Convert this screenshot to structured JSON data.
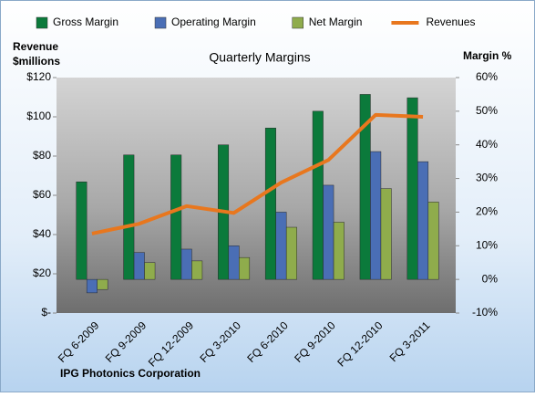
{
  "chart_data": {
    "type": "bar-line",
    "title": "Quarterly Margins",
    "ylabel": [
      "Revenue",
      "$millions"
    ],
    "y2label": "Margin %",
    "source": "IPG Photonics Corporation",
    "categories": [
      "FQ 6-2009",
      "FQ 9-2009",
      "FQ 12-2009",
      "FQ 3-2010",
      "FQ 6-2010",
      "FQ 9-2010",
      "FQ 12-2010",
      "FQ 3-2011"
    ],
    "series": [
      {
        "name": "Gross Margin",
        "color": "#0b7a3b",
        "type": "bar",
        "axis": "y2",
        "values": [
          29,
          37,
          37,
          40,
          45,
          50,
          55,
          54
        ]
      },
      {
        "name": "Operating Margin",
        "color": "#4a6eb5",
        "type": "bar",
        "axis": "y2",
        "values": [
          -4,
          8,
          9,
          10,
          20,
          28,
          38,
          35
        ]
      },
      {
        "name": "Net Margin",
        "color": "#8fac4c",
        "type": "bar",
        "axis": "y2",
        "values": [
          -3,
          5,
          5.5,
          6.5,
          15.5,
          17,
          27,
          23
        ]
      },
      {
        "name": "Revenues",
        "color": "#e8771e",
        "type": "line",
        "axis": "y",
        "values": [
          40.5,
          45.5,
          54.5,
          51,
          66.5,
          78,
          101,
          100
        ]
      }
    ],
    "ylim": [
      0,
      120
    ],
    "yticks": [
      {
        "value": 0,
        "label": "$-"
      },
      {
        "value": 20,
        "label": "$20"
      },
      {
        "value": 40,
        "label": "$40"
      },
      {
        "value": 60,
        "label": "$60"
      },
      {
        "value": 80,
        "label": "$80"
      },
      {
        "value": 100,
        "label": "$100"
      },
      {
        "value": 120,
        "label": "$120"
      }
    ],
    "y2lim": [
      -10,
      60
    ],
    "y2ticks": [
      {
        "value": -10,
        "label": "-10%"
      },
      {
        "value": 0,
        "label": "0%"
      },
      {
        "value": 10,
        "label": "10%"
      },
      {
        "value": 20,
        "label": "20%"
      },
      {
        "value": 30,
        "label": "30%"
      },
      {
        "value": 40,
        "label": "40%"
      },
      {
        "value": 50,
        "label": "50%"
      },
      {
        "value": 60,
        "label": "60%"
      }
    ],
    "legend": "top"
  }
}
